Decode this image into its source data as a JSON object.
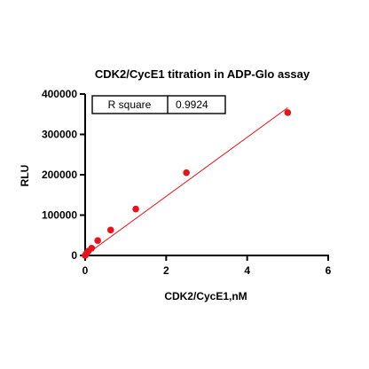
{
  "chart_data": {
    "type": "scatter",
    "title": "CDK2/CycE1 titration in ADP-Glo assay",
    "xlabel": "CDK2/CycE1,nM",
    "ylabel": "RLU",
    "xlim": [
      0,
      6
    ],
    "ylim": [
      0,
      400000
    ],
    "x_ticks": [
      0,
      2,
      4,
      6
    ],
    "y_ticks": [
      0,
      100000,
      200000,
      300000,
      400000
    ],
    "x_tick_labels": [
      "0",
      "2",
      "4",
      "6"
    ],
    "y_tick_labels": [
      "0",
      "100000",
      "200000",
      "300000",
      "400000"
    ],
    "grid": false,
    "points": [
      {
        "x": 0.0,
        "y": 0
      },
      {
        "x": 0.02,
        "y": 3000
      },
      {
        "x": 0.04,
        "y": 6000
      },
      {
        "x": 0.08,
        "y": 11000
      },
      {
        "x": 0.16,
        "y": 18000
      },
      {
        "x": 0.31,
        "y": 37000
      },
      {
        "x": 0.63,
        "y": 63000
      },
      {
        "x": 1.25,
        "y": 115000
      },
      {
        "x": 2.5,
        "y": 205000
      },
      {
        "x": 5.0,
        "y": 354000
      }
    ],
    "fit_line": {
      "x": [
        0,
        5.0
      ],
      "y": [
        0,
        366000
      ]
    },
    "colors": {
      "points": "#e8121a",
      "fit": "#e8121a"
    },
    "stat": {
      "label": "R square",
      "value": "0.9924"
    }
  }
}
